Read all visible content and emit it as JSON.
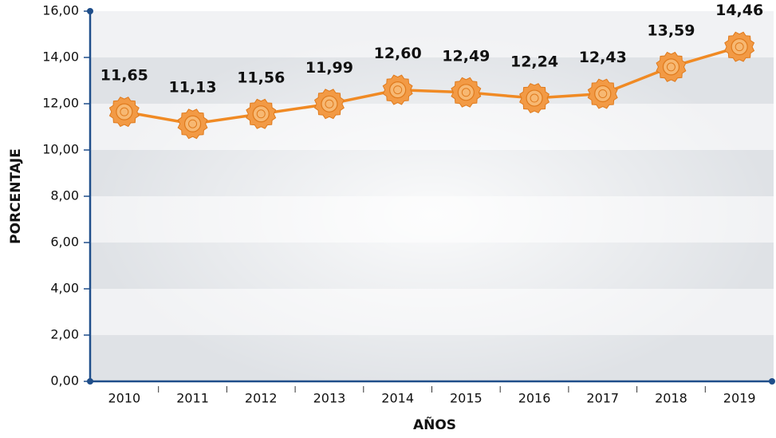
{
  "chart_data": {
    "type": "line",
    "x_label": "AÑOS",
    "y_label": "PORCENTAJE",
    "categories": [
      "2010",
      "2011",
      "2012",
      "2013",
      "2014",
      "2015",
      "2016",
      "2017",
      "2018",
      "2019"
    ],
    "values": [
      11.65,
      11.13,
      11.56,
      11.99,
      12.6,
      12.49,
      12.24,
      12.43,
      13.59,
      14.46
    ],
    "value_labels": [
      "11,65",
      "11,13",
      "11,56",
      "11,99",
      "12,60",
      "12,49",
      "12,24",
      "12,43",
      "13,59",
      "14,46"
    ],
    "color": "#f08a24",
    "ylim": [
      0,
      16
    ],
    "yticks": [
      {
        "value": 0,
        "label": "0,00"
      },
      {
        "value": 2,
        "label": "2,00"
      },
      {
        "value": 4,
        "label": "4,00"
      },
      {
        "value": 6,
        "label": "6,00"
      },
      {
        "value": 8,
        "label": "8,00"
      },
      {
        "value": 10,
        "label": "10,00"
      },
      {
        "value": 12,
        "label": "12,00"
      },
      {
        "value": 14,
        "label": "14,00"
      },
      {
        "value": 16,
        "label": "16,00"
      }
    ],
    "grid": true
  }
}
